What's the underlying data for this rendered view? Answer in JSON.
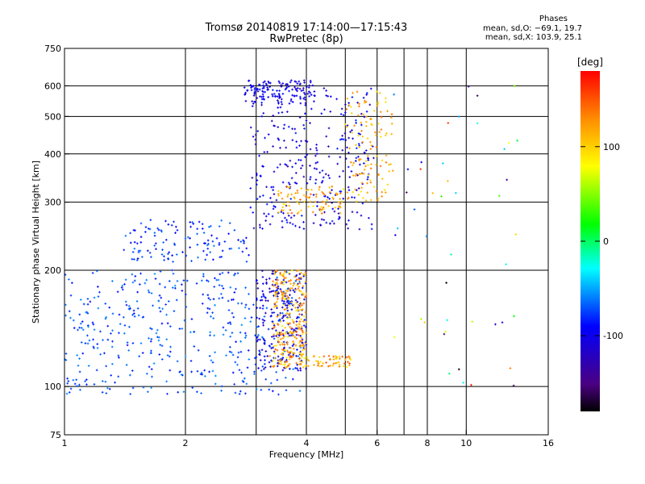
{
  "header": {
    "title_line1": "Tromsø 20140819 17:14:00—17:15:43",
    "title_line2": "RwPretec (8p)",
    "phases_heading": "Phases",
    "phases_o": "mean, sd,O: −69.1, 19.7",
    "phases_x": "mean, sd,X: 103.9, 25.1"
  },
  "chart_data": {
    "type": "scatter",
    "xlabel": "Frequency [MHz]",
    "ylabel": "Stationary phase Virtual Height [km]",
    "xscale": "log",
    "yscale": "log",
    "xlim": [
      1,
      16
    ],
    "ylim": [
      75,
      750
    ],
    "xticks": [
      1,
      2,
      4,
      6,
      8,
      10,
      16
    ],
    "xticklabels": [
      "1",
      "2",
      "4",
      "6",
      "8",
      "10",
      "16"
    ],
    "xgrid": [
      2,
      3,
      4,
      5,
      6,
      7,
      8,
      10
    ],
    "yticks": [
      75,
      100,
      200,
      300,
      400,
      500,
      600,
      750
    ],
    "yticklabels": [
      "75",
      "100",
      "200",
      "300",
      "400",
      "500",
      "600",
      "750"
    ],
    "grid": true,
    "colorbar": {
      "label": "[deg]",
      "range": [
        -180,
        180
      ],
      "ticks": [
        100,
        0,
        -100
      ],
      "ticklabels": [
        "100",
        "0",
        "-100"
      ],
      "colors": [
        "#000000",
        "#4b0082",
        "#0000ff",
        "#00ffff",
        "#00ff00",
        "#ffff00",
        "#ff8c00",
        "#ff0000"
      ]
    },
    "clusters": [
      {
        "name": "",
        "f": [
          2.8,
          4.2
        ],
        "h": [
          540,
          620
        ],
        "phase": [
          -120,
          -80
        ],
        "n": 120
      },
      {
        "name": "",
        "f": [
          2.9,
          5.9
        ],
        "h": [
          255,
          600
        ],
        "phase": [
          -130,
          -80
        ],
        "n": 320
      },
      {
        "name": "",
        "f": [
          1.4,
          2.9
        ],
        "h": [
          210,
          270
        ],
        "phase": [
          -95,
          -60
        ],
        "n": 120
      },
      {
        "name": "",
        "f": [
          1.0,
          3.9
        ],
        "h": [
          95,
          200
        ],
        "phase": [
          -90,
          -55
        ],
        "n": 450
      },
      {
        "name": "",
        "f": [
          3.0,
          4.0
        ],
        "h": [
          110,
          200
        ],
        "phase": [
          -130,
          -80
        ],
        "n": 220
      },
      {
        "name": "",
        "f": [
          3.3,
          4.0
        ],
        "h": [
          120,
          200
        ],
        "phase": [
          85,
          150
        ],
        "n": 230
      },
      {
        "name": "",
        "f": [
          3.4,
          5.0
        ],
        "h": [
          280,
          330
        ],
        "phase": [
          85,
          150
        ],
        "n": 90
      },
      {
        "name": "",
        "f": [
          5.0,
          6.6
        ],
        "h": [
          300,
          580
        ],
        "phase": [
          90,
          140
        ],
        "n": 120
      },
      {
        "name": "",
        "f": [
          3.2,
          5.2
        ],
        "h": [
          112,
          120
        ],
        "phase": [
          80,
          150
        ],
        "n": 90
      },
      {
        "name": "",
        "f": [
          6.5,
          13.5
        ],
        "h": [
          100,
          600
        ],
        "phase": [
          -180,
          180
        ],
        "n": 45
      }
    ]
  }
}
